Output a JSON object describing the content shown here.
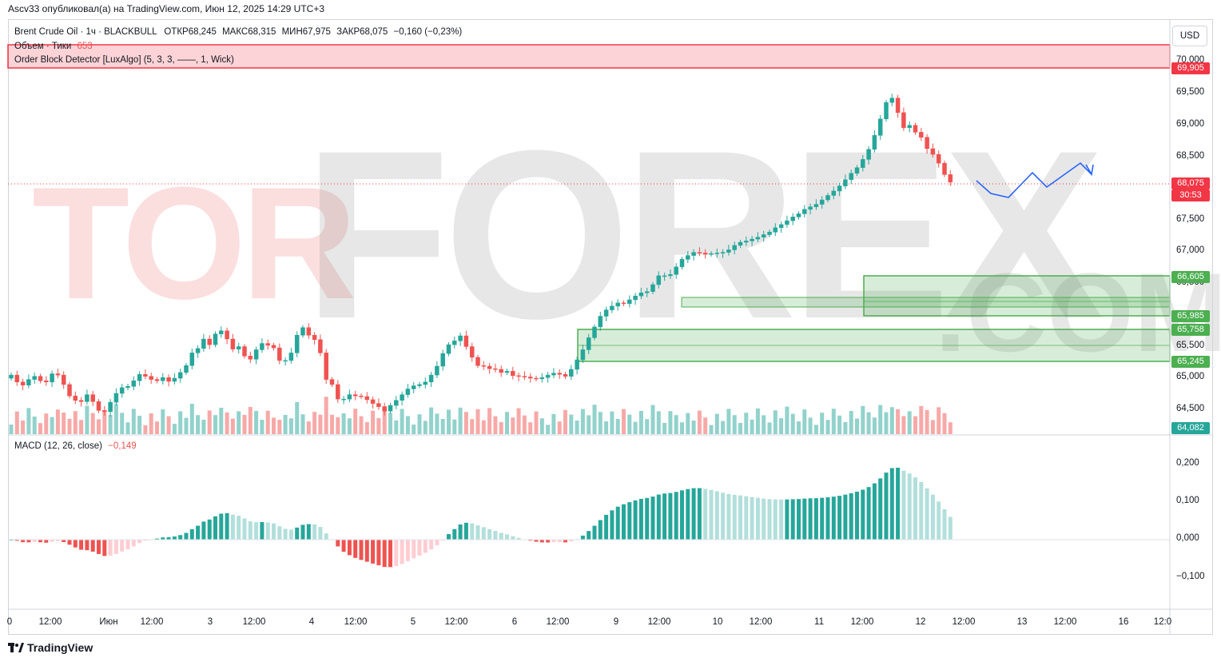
{
  "header": {
    "publish_line": "Ascv33 опубликовал(а) на TradingView.com, Июн 12, 2025 14:29 UTC+3"
  },
  "legend": {
    "symbol": "Brent Crude Oil · 1ч · BLACKBULL",
    "open_label": "ОТКР",
    "open": "68,245",
    "high_label": "МАКС",
    "high": "68,315",
    "low_label": "МИН",
    "low": "67,975",
    "close_label": "ЗАКР",
    "close": "68,075",
    "change": "−0,160 (−0,23%)",
    "volume_label": "Объем · Тики",
    "volume_value": "653",
    "ob_label": "Order Block Detector [LuxAlgo] (5, 3, 3, ——, 1, Wick)",
    "macd_label": "MACD (12, 26, close)",
    "macd_value": "−0,149"
  },
  "currency_button": "USD",
  "price_axis": [
    "70,000",
    "69,500",
    "69,000",
    "68,500",
    "67,500",
    "67,000",
    "66,500",
    "65,500",
    "65,000",
    "64,500"
  ],
  "price_badges": {
    "ob_top": "69,905",
    "last": "68,075",
    "countdown": "30:53",
    "ob1": "66,605",
    "ob2": "65,985",
    "ob3": "65,758",
    "ob4": "65,245",
    "vol_base": "64,082"
  },
  "macd_axis": [
    "0,200",
    "0,100",
    "0,000",
    "−0,100"
  ],
  "time_axis": [
    "0",
    "12:00",
    "Июн",
    "12:00",
    "3",
    "12:00",
    "4",
    "12:00",
    "5",
    "12:00",
    "6",
    "12:00",
    "9",
    "12:00",
    "10",
    "12:00",
    "11",
    "12:00",
    "12",
    "12:00",
    "13",
    "12:00",
    "16",
    "12:0"
  ],
  "watermark": {
    "part1": "TOR",
    "part2": "FOREX",
    "part3": ".COM"
  },
  "brand": "TradingView",
  "colors": {
    "up": "#26a69a",
    "down": "#ef5350",
    "projection": "#2962ff",
    "ob_bull": "#4caf50",
    "ob_bear": "#f23645"
  },
  "chart_data": {
    "type": "candlestick",
    "symbol": "Brent Crude Oil",
    "timeframe": "1h",
    "ylim": [
      64.08,
      70.2
    ],
    "closes": [
      65.03,
      64.92,
      64.87,
      64.96,
      65.01,
      64.94,
      64.92,
      65.05,
      65.03,
      64.88,
      64.7,
      64.63,
      64.61,
      64.72,
      64.61,
      64.47,
      64.45,
      64.6,
      64.74,
      64.83,
      64.85,
      64.94,
      65.04,
      65.01,
      64.96,
      64.94,
      64.99,
      64.93,
      64.98,
      65.07,
      65.18,
      65.38,
      65.45,
      65.6,
      65.51,
      65.68,
      65.73,
      65.6,
      65.44,
      65.48,
      65.33,
      65.28,
      65.43,
      65.53,
      65.5,
      65.46,
      65.26,
      65.26,
      65.38,
      65.66,
      65.78,
      65.66,
      65.59,
      65.38,
      64.96,
      64.88,
      64.65,
      64.65,
      64.72,
      64.7,
      64.69,
      64.64,
      64.58,
      64.53,
      64.46,
      64.55,
      64.63,
      64.72,
      64.81,
      64.86,
      64.88,
      64.92,
      65.03,
      65.17,
      65.37,
      65.51,
      65.57,
      65.65,
      65.48,
      65.31,
      65.18,
      65.17,
      65.13,
      65.12,
      65.07,
      65.09,
      65.02,
      65.01,
      65.0,
      64.98,
      64.97,
      64.99,
      65.03,
      65.06,
      65.04,
      65.01,
      65.12,
      65.27,
      65.43,
      65.62,
      65.79,
      65.96,
      66.06,
      66.12,
      66.17,
      66.16,
      66.22,
      66.28,
      66.33,
      66.35,
      66.46,
      66.6,
      66.6,
      66.62,
      66.74,
      66.86,
      66.92,
      66.97,
      66.96,
      66.94,
      66.95,
      66.96,
      66.97,
      67.01,
      67.08,
      67.13,
      67.15,
      67.18,
      67.21,
      67.25,
      67.29,
      67.36,
      67.41,
      67.47,
      67.53,
      67.58,
      67.65,
      67.69,
      67.73,
      67.8,
      67.87,
      67.94,
      68.02,
      68.12,
      68.22,
      68.31,
      68.44,
      68.6,
      68.82,
      69.08,
      69.34,
      69.41,
      69.18,
      68.94,
      68.98,
      68.87,
      68.79,
      68.61,
      68.52,
      68.38,
      68.2,
      68.08
    ],
    "macd_range": [
      -0.149,
      0.22
    ],
    "projection": "zigzag path continuing up after last candle"
  }
}
